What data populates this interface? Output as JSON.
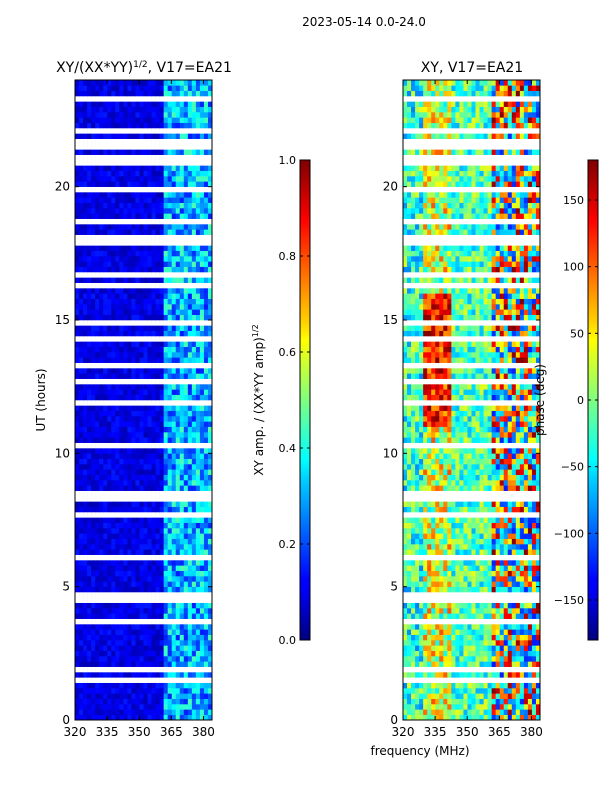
{
  "suptitle": "2023-05-14 0.0-24.0",
  "xlabel_common": "frequency (MHz)",
  "chart_data": [
    {
      "type": "heatmap",
      "title_prefix": "XY/(XX*YY)",
      "title_exponent": "1/2",
      "title_suffix": ", V17=EA21",
      "ylabel": "UT (hours)",
      "xlim": [
        320,
        384
      ],
      "ylim": [
        0,
        24
      ],
      "xticks": [
        320,
        335,
        350,
        365,
        380
      ],
      "yticks": [
        0,
        5,
        10,
        15,
        20
      ],
      "colorbar": {
        "label": "XY amp. / (XX*YY amp)",
        "label_exponent": "1/2",
        "range": [
          0.0,
          1.0
        ],
        "ticks": [
          "0.0",
          "0.2",
          "0.4",
          "0.6",
          "0.8",
          "1.0"
        ],
        "colormap": "jet"
      }
    },
    {
      "type": "heatmap",
      "title": "XY, V17=EA21",
      "xlim": [
        320,
        384
      ],
      "ylim": [
        0,
        24
      ],
      "xticks": [
        320,
        335,
        350,
        365,
        380
      ],
      "yticks": [
        0,
        5,
        10,
        15,
        20
      ],
      "colorbar": {
        "label": "phase (deg)",
        "range": [
          -180,
          180
        ],
        "ticks": [
          "−150",
          "−100",
          "−50",
          "0",
          "50",
          "100",
          "150"
        ],
        "colormap": "jet"
      }
    }
  ]
}
